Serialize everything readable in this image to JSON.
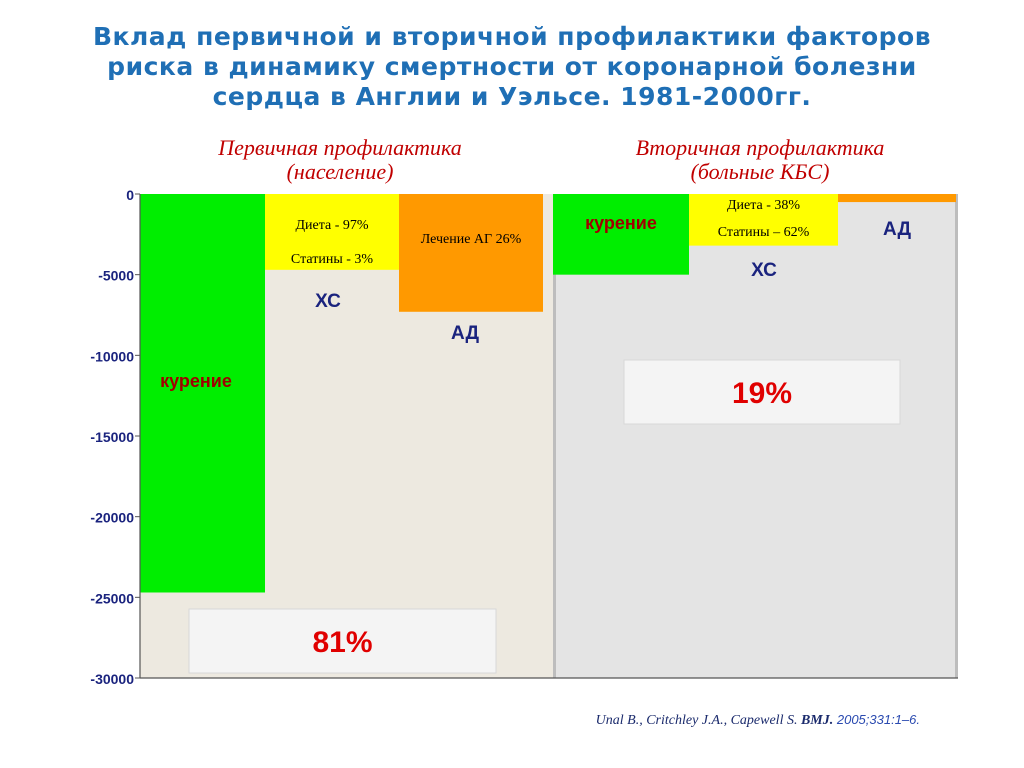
{
  "title": "Вклад первичной и вторичной профилактики факторов\nриска в динамику смертности от коронарной болезни\nсердца в Англии и Уэльсе. 1981-2000гг.",
  "section_left": {
    "line1": "Первичная профилактика",
    "line2": "(население)"
  },
  "section_right": {
    "line1": "Вторичная профилактика",
    "line2": "(больные КБС)"
  },
  "chart_data": {
    "type": "bar",
    "ylim": [
      -30000,
      0
    ],
    "y_ticks": [
      "0",
      "-5000",
      "-10000",
      "-15000",
      "-20000",
      "-25000",
      "-30000"
    ],
    "y_tick_values": [
      0,
      -5000,
      -10000,
      -15000,
      -20000,
      -25000,
      -30000
    ],
    "panels": [
      {
        "name": "Первичная профилактика (население)",
        "background": "#ede9e0"
      },
      {
        "name": "Вторичная профилактика (больные КБС)",
        "background": "#e4e4e4"
      }
    ],
    "bars": [
      {
        "panel": 0,
        "base": 0,
        "value": -24700,
        "color": "#00ee00",
        "label": "курение",
        "label_color": "#a00000"
      },
      {
        "panel": 0,
        "base": 0,
        "value": -4700,
        "color": "#ffff00",
        "inner_labels": [
          "Диета - 97%",
          "Статины - 3%"
        ],
        "label": "ХС",
        "label_color": "#1a237e"
      },
      {
        "panel": 0,
        "base": 0,
        "value": -7300,
        "color": "#ff9900",
        "inner_labels": [
          "Лечение АГ 26%"
        ],
        "label": "АД",
        "label_color": "#1a237e"
      },
      {
        "panel": 1,
        "base": 0,
        "value": -5000,
        "color": "#00ee00",
        "inner_labels": [
          "курение"
        ],
        "inner_label_color": "#a00000"
      },
      {
        "panel": 1,
        "base": 0,
        "value": -3200,
        "color": "#ffff00",
        "inner_labels": [
          "Диета  - 38%",
          "Статины – 62%"
        ],
        "label": "ХС",
        "label_color": "#1a237e"
      },
      {
        "panel": 1,
        "base": 0,
        "value": -500,
        "color": "#ff9900",
        "label": "АД",
        "label_color": "#1a237e"
      }
    ],
    "annotations": [
      {
        "panel": 0,
        "text": "81%",
        "color": "#e00000"
      },
      {
        "panel": 1,
        "text": "19%",
        "color": "#e00000"
      }
    ]
  },
  "citation": {
    "authors": "Unal B., Critchley J.A., Capewell S. ",
    "journal": "BMJ.",
    "ref": " 2005;331:1–6."
  }
}
